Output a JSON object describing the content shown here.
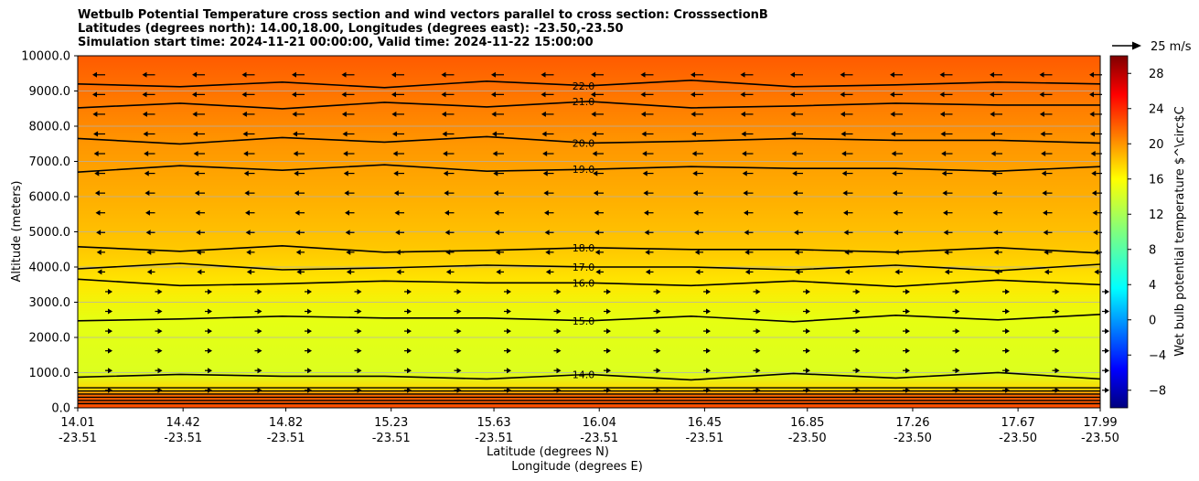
{
  "chart_data": {
    "type": "heatmap",
    "title": [
      "Wetbulb Potential Temperature cross section and wind vectors parallel to cross section: CrosssectionB",
      "Latitudes (degrees north): 14.00,18.00, Longitudes (degrees east): -23.50,-23.50",
      "Simulation start time: 2024-11-21 00:00:00, Valid time: 2024-11-22 15:00:00"
    ],
    "ylabel": "Altitude (meters)",
    "xlabel_lat": "Latitude (degrees N)",
    "xlabel_lon": "Longitude (degrees E)",
    "ylim": [
      0,
      10000
    ],
    "y_ticks": [
      "0.0",
      "1000.0",
      "2000.0",
      "3000.0",
      "4000.0",
      "5000.0",
      "6000.0",
      "7000.0",
      "8000.0",
      "9000.0",
      "10000.0"
    ],
    "y_tick_values": [
      0,
      1000,
      2000,
      3000,
      4000,
      5000,
      6000,
      7000,
      8000,
      9000,
      10000
    ],
    "x_ticks_lat": [
      "14.01",
      "14.42",
      "14.82",
      "15.23",
      "15.63",
      "16.04",
      "16.45",
      "16.85",
      "17.26",
      "17.67",
      "17.99"
    ],
    "x_ticks_lon": [
      "-23.51",
      "-23.51",
      "-23.51",
      "-23.51",
      "-23.51",
      "-23.51",
      "-23.51",
      "-23.50",
      "-23.50",
      "-23.50",
      "-23.50"
    ],
    "x_tick_values": [
      14.01,
      14.42,
      14.82,
      15.23,
      15.63,
      16.04,
      16.45,
      16.85,
      17.26,
      17.67,
      17.99
    ],
    "xlim": [
      14.01,
      17.99
    ],
    "grid": "horizontal",
    "colorbar": {
      "label": "Wet bulb potential temperature $^\\circ$C",
      "range": [
        -10,
        30
      ],
      "ticks": [
        "−8",
        "−4",
        "0",
        "4",
        "8",
        "12",
        "16",
        "20",
        "24",
        "28"
      ],
      "tick_values": [
        -8,
        -4,
        0,
        4,
        8,
        12,
        16,
        20,
        24,
        28
      ],
      "colormap": "jet"
    },
    "quiver_key": "25 m/s",
    "contour_levels": [
      {
        "value": 22.0,
        "label": "22.0",
        "altitude_m": 9200
      },
      {
        "value": 21.0,
        "label": "21.0",
        "altitude_m": 8600
      },
      {
        "value": 20.0,
        "label": "20.0",
        "altitude_m": 7600
      },
      {
        "value": 19.0,
        "label": "19.0",
        "altitude_m": 6800
      },
      {
        "value": 18.0,
        "label": "18.0",
        "altitude_m": 4500
      },
      {
        "value": 17.0,
        "label": "17.0",
        "altitude_m": 4000
      },
      {
        "value": 16.0,
        "label": "16.0",
        "altitude_m": 3550
      },
      {
        "value": 15.0,
        "label": "15.0",
        "altitude_m": 2550
      },
      {
        "value": 14.0,
        "label": "14.0",
        "altitude_m": 900
      }
    ],
    "field_bands": [
      {
        "from_m": 0,
        "to_m": 400,
        "temp": 23.5
      },
      {
        "from_m": 400,
        "to_m": 900,
        "temp": 16.5
      },
      {
        "from_m": 900,
        "to_m": 2500,
        "temp": 15.0
      },
      {
        "from_m": 2500,
        "to_m": 3600,
        "temp": 16.0
      },
      {
        "from_m": 3600,
        "to_m": 5500,
        "temp": 18.0
      },
      {
        "from_m": 5500,
        "to_m": 7000,
        "temp": 19.0
      },
      {
        "from_m": 7000,
        "to_m": 8500,
        "temp": 20.5
      },
      {
        "from_m": 8500,
        "to_m": 10000,
        "temp": 22.5
      }
    ]
  }
}
